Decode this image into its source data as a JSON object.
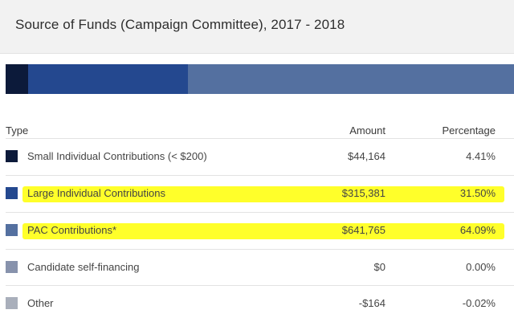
{
  "title": "Source of Funds (Campaign Committee), 2017 - 2018",
  "bar": [
    {
      "name": "Small Individual Contributions (< $200)",
      "percent": 4.41,
      "color": "#0c1a3a"
    },
    {
      "name": "Large Individual Contributions",
      "percent": 31.5,
      "color": "#24488f"
    },
    {
      "name": "PAC Contributions*",
      "percent": 64.09,
      "color": "#5470a0"
    }
  ],
  "columns": {
    "type": "Type",
    "amount": "Amount",
    "percentage": "Percentage"
  },
  "rows": [
    {
      "label": "Small Individual Contributions (< $200)",
      "amount": "$44,164",
      "percentage": "4.41%",
      "color": "#0c1a3a",
      "highlighted": false
    },
    {
      "label": "Large Individual Contributions",
      "amount": "$315,381",
      "percentage": "31.50%",
      "color": "#24488f",
      "highlighted": true
    },
    {
      "label": "PAC Contributions*",
      "amount": "$641,765",
      "percentage": "64.09%",
      "color": "#5470a0",
      "highlighted": true
    },
    {
      "label": "Candidate self-financing",
      "amount": "$0",
      "percentage": "0.00%",
      "color": "#8792ac",
      "highlighted": false
    },
    {
      "label": "Other",
      "amount": "-$164",
      "percentage": "-0.02%",
      "color": "#a9afbb",
      "highlighted": false
    }
  ]
}
